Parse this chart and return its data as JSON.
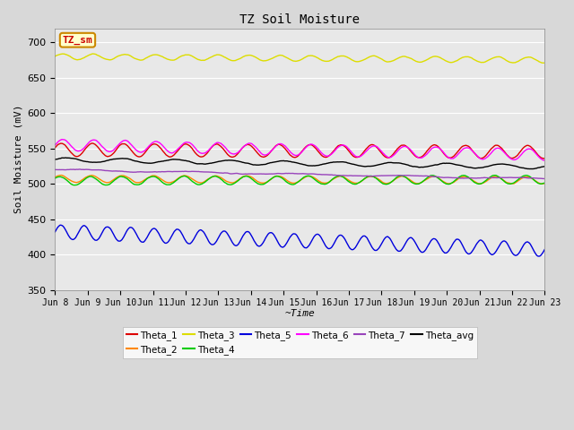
{
  "title": "TZ Soil Moisture",
  "xlabel": "~Time",
  "ylabel": "Soil Moisture (mV)",
  "ylim": [
    350,
    720
  ],
  "yticks": [
    350,
    400,
    450,
    500,
    550,
    600,
    650,
    700
  ],
  "x_days": 15,
  "num_points": 1500,
  "background_color": "#d8d8d8",
  "plot_bg_color": "#e8e8e8",
  "legend_label": "TZ_sm",
  "legend_bg": "#ffffcc",
  "legend_border": "#cc8800",
  "series": [
    {
      "name": "Theta_1",
      "color": "#dd0000",
      "base": 548,
      "amp": 9,
      "trend": -3,
      "freq": 1.05,
      "phase": 0.3
    },
    {
      "name": "Theta_2",
      "color": "#ff8800",
      "base": 507,
      "amp": 5,
      "trend": -2,
      "freq": 1.05,
      "phase": 0.5
    },
    {
      "name": "Theta_3",
      "color": "#dddd00",
      "base": 680,
      "amp": 4,
      "trend": -5,
      "freq": 1.05,
      "phase": 0.1
    },
    {
      "name": "Theta_4",
      "color": "#00cc00",
      "base": 504,
      "amp": 6,
      "trend": 2,
      "freq": 1.05,
      "phase": 0.7
    },
    {
      "name": "Theta_5",
      "color": "#0000dd",
      "base": 432,
      "amp": 10,
      "trend": -25,
      "freq": 1.4,
      "phase": 0.0
    },
    {
      "name": "Theta_6",
      "color": "#ff00ff",
      "base": 555,
      "amp": 8,
      "trend": -14,
      "freq": 1.05,
      "phase": 0.0
    },
    {
      "name": "Theta_7",
      "color": "#9944bb",
      "base": 520,
      "amp": 1,
      "trend": -13,
      "freq": 0.3,
      "phase": 0.0
    },
    {
      "name": "Theta_avg",
      "color": "#000000",
      "base": 534,
      "amp": 3,
      "trend": -10,
      "freq": 0.6,
      "phase": 0.2
    }
  ],
  "x_tick_labels": [
    "Jun 8",
    "Jun 9",
    "Jun 10",
    "Jun 11",
    "Jun 12",
    "Jun 13",
    "Jun 14",
    "Jun 15",
    "Jun 16",
    "Jun 17",
    "Jun 18",
    "Jun 19",
    "Jun 20",
    "Jun 21",
    "Jun 22",
    "Jun 23"
  ],
  "x_tick_positions": [
    0,
    1,
    2,
    3,
    4,
    5,
    6,
    7,
    8,
    9,
    10,
    11,
    12,
    13,
    14,
    15
  ],
  "legend_order": [
    "Theta_1",
    "Theta_2",
    "Theta_3",
    "Theta_4",
    "Theta_5",
    "Theta_6",
    "Theta_7",
    "Theta_avg"
  ]
}
